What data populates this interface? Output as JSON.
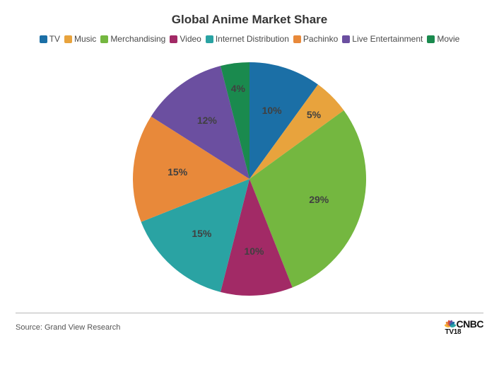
{
  "chart": {
    "type": "pie",
    "title": "Global Anime Market Share",
    "title_fontsize": 17,
    "title_color": "#353535",
    "background_color": "#ffffff",
    "start_angle": 90,
    "direction": "clockwise",
    "radius": 165,
    "label_fontsize": 14,
    "label_fontweight": "bold",
    "label_color": "#404040",
    "slices": [
      {
        "label": "TV",
        "value": 10,
        "color": "#1b6fa6",
        "text": "10%"
      },
      {
        "label": "Music",
        "value": 5,
        "color": "#e8a33d",
        "text": "5%"
      },
      {
        "label": "Merchandising",
        "value": 29,
        "color": "#74b740",
        "text": "29%"
      },
      {
        "label": "Video",
        "value": 10,
        "color": "#a22a66",
        "text": "10%"
      },
      {
        "label": "Internet Distribution",
        "value": 15,
        "color": "#2aa3a3",
        "text": "15%"
      },
      {
        "label": "Pachinko",
        "value": 15,
        "color": "#e8893a",
        "text": "15%"
      },
      {
        "label": "Live Entertainment",
        "value": 12,
        "color": "#6b4fa0",
        "text": "12%"
      },
      {
        "label": "Movie",
        "value": 4,
        "color": "#1a8a4e",
        "text": "4%"
      }
    ],
    "legend": {
      "position": "top",
      "fontsize": 12,
      "color": "#4a4a4a",
      "swatch_size": 11,
      "swatch_radius": 2
    }
  },
  "footer": {
    "source": "Source: Grand View Research",
    "source_fontsize": 11,
    "source_color": "#555555",
    "divider_color": "#b8b8b8",
    "brand_main": "CNBC",
    "brand_sub": "TV18",
    "peacock_colors": [
      "#f9b233",
      "#e8893a",
      "#d94d3a",
      "#6b4fa0",
      "#1b6fa6",
      "#2aa3a3"
    ]
  }
}
